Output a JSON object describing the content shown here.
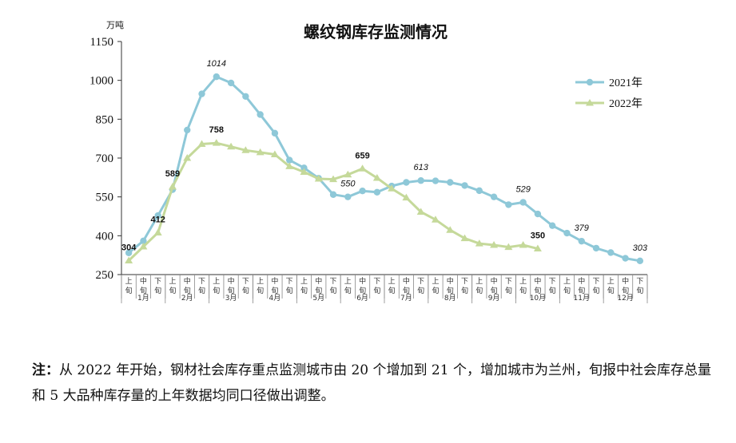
{
  "chart_data": {
    "type": "line",
    "title": "螺纹钢库存监测情况",
    "yunit": "万吨",
    "ylim": [
      250,
      1150
    ],
    "yticks": [
      250,
      400,
      550,
      700,
      850,
      1000,
      1150
    ],
    "period_labels": [
      "上旬",
      "中旬",
      "下旬"
    ],
    "months": [
      "1月",
      "2月",
      "3月",
      "4月",
      "5月",
      "6月",
      "7月",
      "8月",
      "9月",
      "10月",
      "11月",
      "12月"
    ],
    "legend_position": "top-right",
    "series": [
      {
        "name": "2021年",
        "color": "#8ec8d8",
        "marker": "circle",
        "values": [
          334,
          380,
          478,
          578,
          808,
          948,
          1014,
          990,
          938,
          868,
          796,
          692,
          662,
          622,
          559,
          550,
          573,
          568,
          592,
          606,
          613,
          612,
          606,
          594,
          574,
          550,
          520,
          529,
          484,
          439,
          410,
          379,
          352,
          335,
          313,
          303
        ]
      },
      {
        "name": "2022年",
        "color": "#c5d99a",
        "marker": "triangle",
        "values": [
          304,
          358,
          412,
          589,
          700,
          754,
          758,
          744,
          730,
          722,
          714,
          668,
          646,
          620,
          618,
          636,
          659,
          623,
          582,
          547,
          492,
          462,
          422,
          390,
          370,
          364,
          356,
          364,
          350
        ]
      }
    ],
    "annotations": [
      {
        "series": 0,
        "index": 6,
        "text": "1014",
        "style": "italic"
      },
      {
        "series": 0,
        "index": 15,
        "text": "550",
        "style": "italic"
      },
      {
        "series": 0,
        "index": 20,
        "text": "613",
        "style": "italic"
      },
      {
        "series": 0,
        "index": 27,
        "text": "529",
        "style": "italic"
      },
      {
        "series": 0,
        "index": 31,
        "text": "379",
        "style": "italic"
      },
      {
        "series": 0,
        "index": 35,
        "text": "303",
        "style": "italic"
      },
      {
        "series": 1,
        "index": 0,
        "text": "304",
        "style": "bold"
      },
      {
        "series": 1,
        "index": 2,
        "text": "412",
        "style": "bold"
      },
      {
        "series": 1,
        "index": 3,
        "text": "589",
        "style": "bold"
      },
      {
        "series": 1,
        "index": 6,
        "text": "758",
        "style": "bold"
      },
      {
        "series": 1,
        "index": 16,
        "text": "659",
        "style": "bold"
      },
      {
        "series": 1,
        "index": 28,
        "text": "350",
        "style": "bold"
      }
    ]
  },
  "note": {
    "label": "注：",
    "text": "从 2022 年开始，钢材社会库存重点监测城市由 20 个增加到 21 个，增加城市为兰州，旬报中社会库存总量和 5 大品种库存量的上年数据均同口径做出调整。"
  }
}
